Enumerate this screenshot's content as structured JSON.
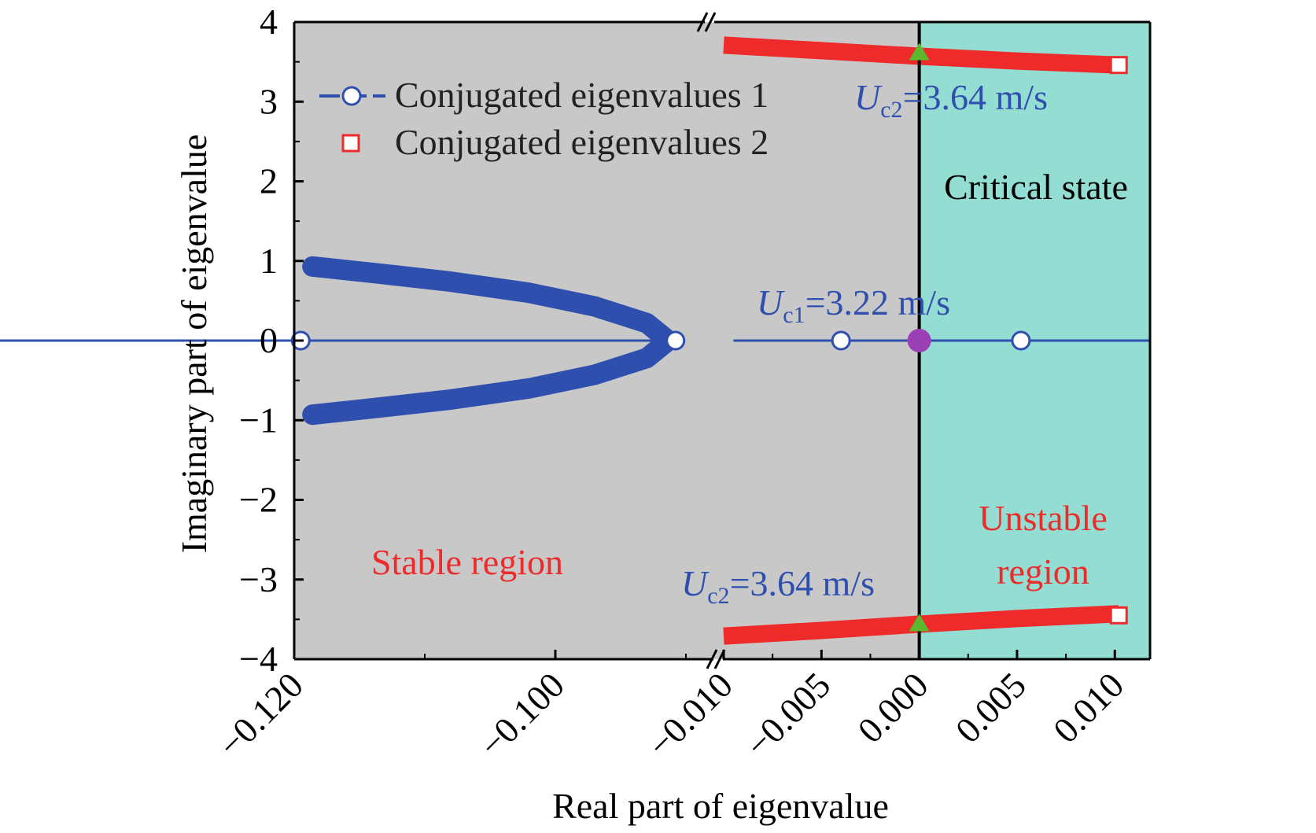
{
  "chart_data": {
    "type": "scatter",
    "title": "",
    "xlabel": "Real part of eigenvalue",
    "ylabel": "Imaginary part of eigenvalue",
    "x_axis": {
      "broken": true,
      "segments": [
        {
          "range": [
            -0.12,
            -0.09
          ],
          "ticks": [
            -0.12,
            -0.11,
            -0.1,
            -0.09
          ]
        },
        {
          "range": [
            -0.01,
            0.0118
          ],
          "ticks": [
            -0.01,
            -0.0075,
            -0.005,
            -0.0025,
            0.0,
            0.0025,
            0.005,
            0.0075,
            0.01
          ]
        }
      ],
      "tick_labels": [
        {
          "value": -0.12,
          "label": "−0.120"
        },
        {
          "value": -0.1,
          "label": "−0.100"
        },
        {
          "value": -0.01,
          "label": "−0.010"
        },
        {
          "value": -0.005,
          "label": "−0.005"
        },
        {
          "value": 0.0,
          "label": "0.000"
        },
        {
          "value": 0.005,
          "label": "0.005"
        },
        {
          "value": 0.01,
          "label": "0.010"
        }
      ]
    },
    "y_axis": {
      "range": [
        -4,
        4
      ],
      "ticks": [
        -4,
        -3,
        -2,
        -1,
        0,
        1,
        2,
        3,
        4
      ],
      "tick_labels": [
        "−4",
        "−3",
        "−2",
        "−1",
        "0",
        "1",
        "2",
        "3",
        "4"
      ]
    },
    "regions": [
      {
        "name": "Stable region",
        "x_range": [
          -0.12,
          0.0
        ],
        "color": "#c8c8c8",
        "label_color": "#ee2a2a"
      },
      {
        "name": "Unstable region",
        "x_range": [
          0.0,
          0.0118
        ],
        "color": "#93ddd3",
        "label_color": "#ee2a2a"
      }
    ],
    "region_labels": {
      "stable": "Stable region",
      "unstable_line1": "Unstable",
      "unstable_line2": "region",
      "critical": "Critical state"
    },
    "series": [
      {
        "name": "Conjugated eigenvalues 1",
        "color": "#2f4fae",
        "marker": "open-circle",
        "branches": [
          {
            "x": [
              -0.1186,
              -0.114,
              -0.108,
              -0.102,
              -0.097,
              -0.093,
              -0.0915
            ],
            "y": [
              0.93,
              0.85,
              0.74,
              0.6,
              0.43,
              0.22,
              0.02
            ]
          },
          {
            "x": [
              -0.1186,
              -0.114,
              -0.108,
              -0.102,
              -0.097,
              -0.093,
              -0.0915
            ],
            "y": [
              -0.93,
              -0.85,
              -0.74,
              -0.6,
              -0.43,
              -0.22,
              -0.02
            ]
          }
        ],
        "real_axis_points": {
          "x": [
            -0.1195,
            -0.0908,
            -0.004,
            0.0052
          ],
          "y": [
            0,
            0,
            0,
            0
          ]
        }
      },
      {
        "name": "Conjugated eigenvalues 2",
        "color": "#ee2a2a",
        "marker": "open-square",
        "branches": [
          {
            "x": [
              -0.01,
              -0.005,
              0.0,
              0.005,
              0.0102
            ],
            "y": [
              3.71,
              3.64,
              3.57,
              3.51,
              3.46
            ]
          },
          {
            "x": [
              -0.01,
              -0.005,
              0.0,
              0.005,
              0.0102
            ],
            "y": [
              -3.71,
              -3.64,
              -3.56,
              -3.49,
              -3.43
            ]
          }
        ],
        "end_markers": {
          "x": [
            0.0102,
            0.0102
          ],
          "y": [
            3.46,
            -3.45
          ]
        }
      }
    ],
    "critical_points": [
      {
        "x": 0.0,
        "y": 0,
        "marker": "filled-circle",
        "color": "#9b3fb5"
      },
      {
        "x": 0.0,
        "y": 3.62,
        "marker": "triangle",
        "color": "#5cb82d"
      },
      {
        "x": 0.0,
        "y": -3.55,
        "marker": "triangle",
        "color": "#5cb82d"
      }
    ],
    "annotations": {
      "uc1_symbol": "U",
      "uc1_sub": "c1",
      "uc1_value": "=3.22 m/s",
      "uc2_symbol": "U",
      "uc2_sub": "c2",
      "uc2_value": "=3.64 m/s"
    },
    "legend": {
      "placement": "top-left",
      "entries": [
        "Conjugated eigenvalues 1",
        "Conjugated eigenvalues 2"
      ]
    },
    "colors": {
      "axis": "#000000",
      "blue": "#2f4fae",
      "red": "#ee2a2a",
      "purple": "#9b3fb5",
      "green": "#5cb82d",
      "critical_line": "#000000"
    }
  }
}
